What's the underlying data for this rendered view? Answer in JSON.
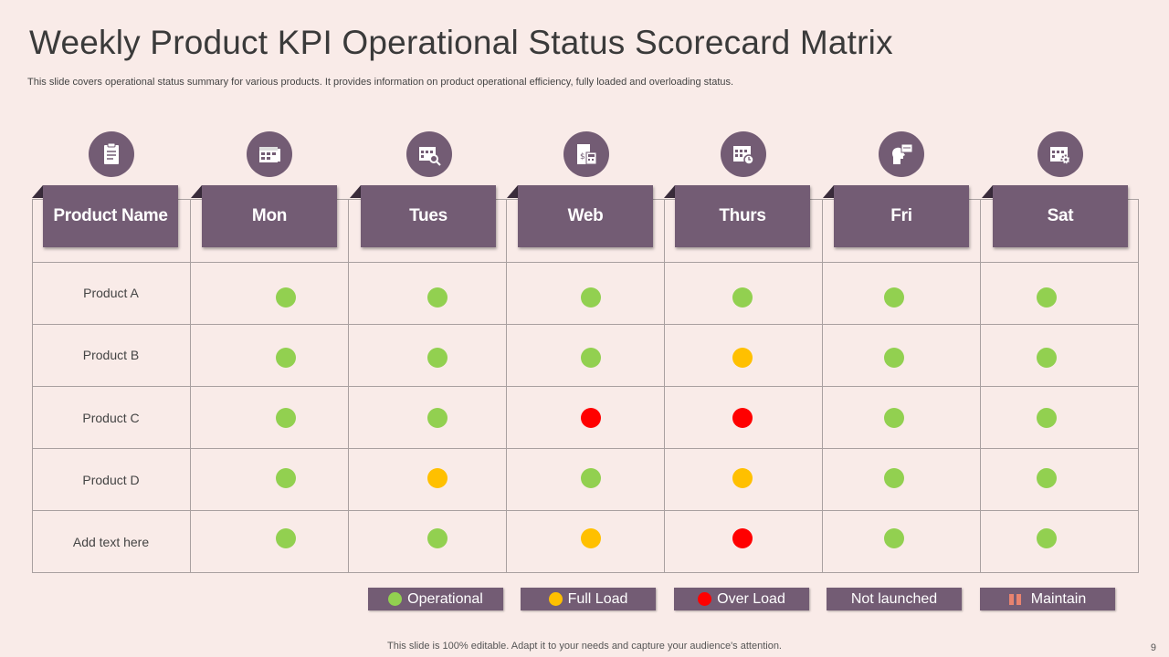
{
  "title": "Weekly Product KPI Operational Status Scorecard Matrix",
  "subtitle": "This slide covers operational status summary for various products. It provides information on product operational efficiency, fully loaded and overloading status.",
  "icons": [
    "clipboard-list-icon",
    "calendar-grid-icon",
    "calendar-search-icon",
    "calculator-document-icon",
    "calendar-clock-icon",
    "head-presentation-icon",
    "calendar-gear-icon"
  ],
  "headers": [
    "Product Name",
    "Mon",
    "Tues",
    "Web",
    "Thurs",
    "Fri",
    "Sat"
  ],
  "status_colors": {
    "operational": "#92d050",
    "full_load": "#ffc000",
    "over_load": "#ff0000"
  },
  "rows": [
    {
      "label": "Product A",
      "statuses": [
        "operational",
        "operational",
        "operational",
        "operational",
        "operational",
        "operational"
      ]
    },
    {
      "label": "Product B",
      "statuses": [
        "operational",
        "operational",
        "operational",
        "full_load",
        "operational",
        "operational"
      ]
    },
    {
      "label": "Product C",
      "statuses": [
        "operational",
        "operational",
        "over_load",
        "over_load",
        "operational",
        "operational"
      ]
    },
    {
      "label": "Product D",
      "statuses": [
        "operational",
        "full_load",
        "operational",
        "full_load",
        "operational",
        "operational"
      ]
    },
    {
      "label": "Add text here",
      "statuses": [
        "operational",
        "operational",
        "full_load",
        "over_load",
        "operational",
        "operational"
      ]
    }
  ],
  "legend": [
    {
      "label": "Operational",
      "marker": "dot",
      "color": "#92d050"
    },
    {
      "label": "Full Load",
      "marker": "dot",
      "color": "#ffc000"
    },
    {
      "label": "Over Load",
      "marker": "dot",
      "color": "#ff0000"
    },
    {
      "label": "Not launched",
      "marker": "none",
      "color": ""
    },
    {
      "label": "Maintain",
      "marker": "bars",
      "color": "#e8836f"
    }
  ],
  "footer": "This slide is 100% editable. Adapt it to your needs and capture your audience's attention.",
  "page_number": "9"
}
